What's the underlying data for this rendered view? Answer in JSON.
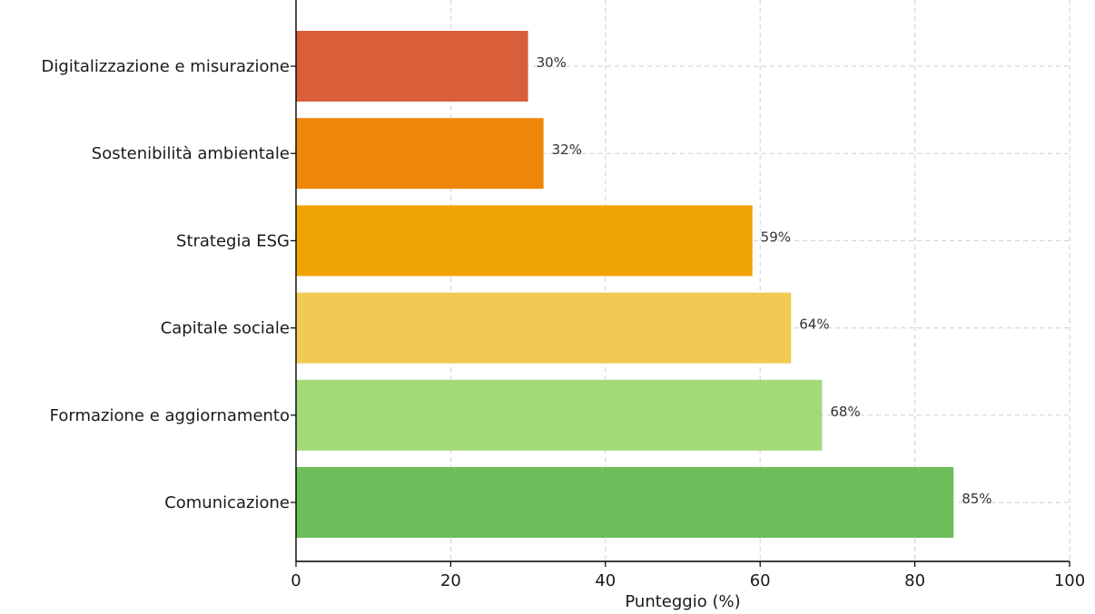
{
  "chart_data": {
    "type": "bar",
    "orientation": "horizontal",
    "categories": [
      "Digitalizzazione e misurazione",
      "Sostenibilità ambientale",
      "Strategia ESG",
      "Capitale sociale",
      "Formazione e aggiornamento",
      "Comunicazione"
    ],
    "values": [
      30,
      32,
      59,
      64,
      68,
      85
    ],
    "value_labels": [
      "30%",
      "32%",
      "59%",
      "64%",
      "68%",
      "85%"
    ],
    "colors": [
      "#d95f3b",
      "#ee8709",
      "#f0a305",
      "#f1c955",
      "#a3d977",
      "#6cbf5a"
    ],
    "xlabel": "Punteggio (%)",
    "ylabel": "",
    "xlim": [
      0,
      100
    ],
    "xticks": [
      "0",
      "20",
      "40",
      "60",
      "80",
      "100"
    ],
    "grid": true
  }
}
